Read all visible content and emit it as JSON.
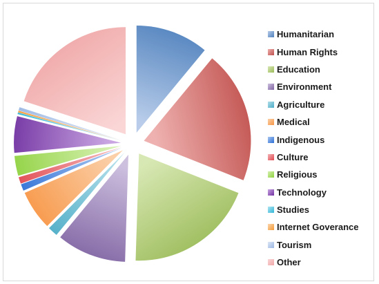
{
  "chart_data": {
    "type": "pie",
    "title": "",
    "exploded": true,
    "legend_position": "right",
    "series": [
      {
        "name": "Humanitarian",
        "value": 11,
        "color": "#4f81bd",
        "light": "#b9cdea"
      },
      {
        "name": "Human Rights",
        "value": 20,
        "color": "#c0504d",
        "light": "#eeb1af"
      },
      {
        "name": "Education",
        "value": 19.5,
        "color": "#9bbb59",
        "light": "#d8e8b4"
      },
      {
        "name": "Environment",
        "value": 10.5,
        "color": "#8064a2",
        "light": "#cdc0df"
      },
      {
        "name": "Agriculture",
        "value": 1.5,
        "color": "#4bacc6",
        "light": "#b3deea"
      },
      {
        "name": "Medical",
        "value": 6,
        "color": "#f79646",
        "light": "#fbd0a9"
      },
      {
        "name": "Indigenous",
        "value": 1,
        "color": "#2c6fd6",
        "light": "#a9c6f0"
      },
      {
        "name": "Culture",
        "value": 1,
        "color": "#e0484f",
        "light": "#f3b4b7"
      },
      {
        "name": "Religious",
        "value": 3,
        "color": "#8fd13f",
        "light": "#d5f0b0"
      },
      {
        "name": "Technology",
        "value": 5.5,
        "color": "#7030a0",
        "light": "#c9a6e2"
      },
      {
        "name": "Studies",
        "value": 0.25,
        "color": "#31b6d6",
        "light": "#aee4f2"
      },
      {
        "name": "Internet Goverance",
        "value": 0.25,
        "color": "#f59b38",
        "light": "#fbd6ae"
      },
      {
        "name": "Tourism",
        "value": 0.5,
        "color": "#9ab6e2",
        "light": "#dde7f6"
      },
      {
        "name": "Other",
        "value": 20,
        "color": "#f0a8a8",
        "light": "#fad6d6"
      }
    ]
  }
}
